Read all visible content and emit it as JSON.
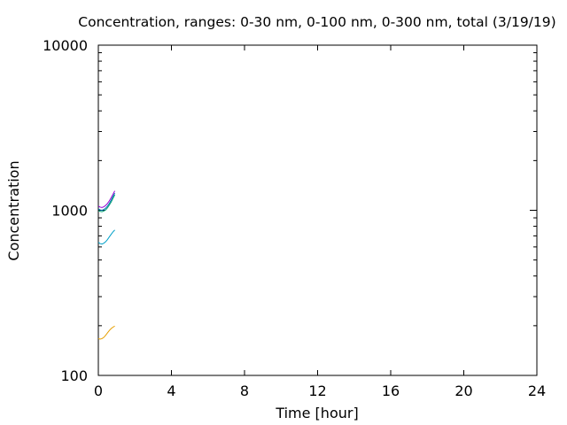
{
  "chart_data": {
    "type": "line",
    "title": "Concentration, ranges: 0-30 nm, 0-100 nm, 0-300 nm, total (3/19/19)",
    "xlabel": "Time [hour]",
    "ylabel": "Concentration",
    "xlim": [
      0,
      24
    ],
    "ylim": [
      100,
      10000
    ],
    "yscale": "log",
    "grid": false,
    "xticks": [
      0,
      4,
      8,
      12,
      16,
      20,
      24
    ],
    "xtick_labels": [
      "0",
      "4",
      "8",
      "12",
      "16",
      "20",
      "24"
    ],
    "yticks": [
      100,
      1000,
      10000
    ],
    "ytick_labels": [
      "100",
      "1000",
      "10000"
    ],
    "series": [
      {
        "color": "#9400d3",
        "x": [
          0.0,
          0.1,
          0.2,
          0.3,
          0.4,
          0.5,
          0.6,
          0.7,
          0.8,
          0.9
        ],
        "y": [
          1060,
          1045,
          1040,
          1050,
          1070,
          1100,
          1140,
          1190,
          1250,
          1310
        ]
      },
      {
        "color": "#0072b2",
        "x": [
          0.0,
          0.1,
          0.2,
          0.3,
          0.4,
          0.5,
          0.6,
          0.7,
          0.8,
          0.9
        ],
        "y": [
          1020,
          1005,
          1000,
          1010,
          1030,
          1060,
          1100,
          1150,
          1210,
          1270
        ]
      },
      {
        "color": "#009e73",
        "x": [
          0.0,
          0.1,
          0.2,
          0.3,
          0.4,
          0.5,
          0.6,
          0.7,
          0.8,
          0.9
        ],
        "y": [
          995,
          985,
          980,
          990,
          1005,
          1035,
          1075,
          1120,
          1180,
          1240
        ]
      },
      {
        "color": "#00a0c8",
        "x": [
          0.0,
          0.1,
          0.2,
          0.3,
          0.4,
          0.5,
          0.6,
          0.7,
          0.8,
          0.9
        ],
        "y": [
          640,
          628,
          625,
          632,
          645,
          665,
          690,
          715,
          740,
          760
        ]
      },
      {
        "color": "#e69f00",
        "x": [
          0.0,
          0.1,
          0.2,
          0.3,
          0.4,
          0.5,
          0.6,
          0.7,
          0.8,
          0.9
        ],
        "y": [
          167,
          166,
          167,
          170,
          175,
          181,
          187,
          192,
          196,
          199
        ]
      }
    ]
  }
}
